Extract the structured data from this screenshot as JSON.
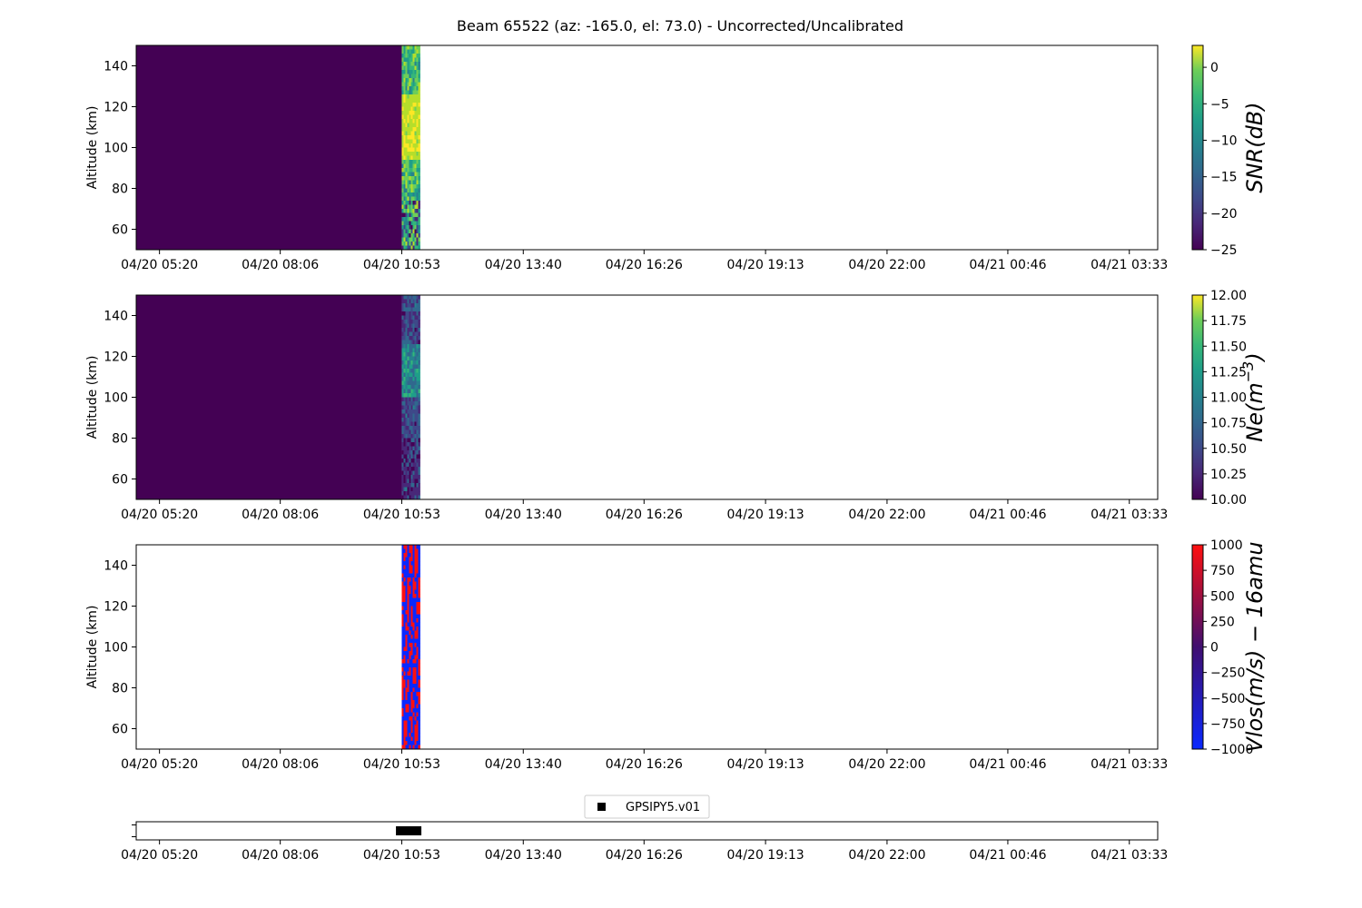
{
  "figure": {
    "title": "Beam 65522 (az: -165.0, el: 73.0) - Uncorrected/Uncalibrated"
  },
  "colors": {
    "viridis_low": "#440154",
    "vlos_blue": "#0a28ff",
    "vlos_red": "#ff1010",
    "axis": "#000000",
    "background": "#ffffff"
  },
  "chart_data": [
    {
      "type": "heatmap",
      "id": "snr",
      "ylabel": "Altitude (km)",
      "ylim": [
        50,
        150
      ],
      "yticks": [
        60,
        80,
        100,
        120,
        140
      ],
      "xticks": [
        "04/20 05:20",
        "04/20 08:06",
        "04/20 10:53",
        "04/20 13:40",
        "04/20 16:26",
        "04/20 19:13",
        "04/20 22:00",
        "04/21 00:46",
        "04/21 03:33"
      ],
      "xlim": [
        "04/20 04:48",
        "04/21 04:12"
      ],
      "colormap": "viridis",
      "colorbar": {
        "label": "SNR(dB)",
        "range": [
          -25,
          3
        ],
        "ticks": [
          "0",
          "−5",
          "−10",
          "−15",
          "−20",
          "−25"
        ]
      },
      "filled_span": [
        "04/20 04:48",
        "04/20 10:53"
      ],
      "data_span": [
        "04/20 10:53",
        "04/20 11:18"
      ],
      "data_peak_altitude_range": [
        95,
        125
      ]
    },
    {
      "type": "heatmap",
      "id": "ne",
      "ylabel": "Altitude (km)",
      "ylim": [
        50,
        150
      ],
      "yticks": [
        60,
        80,
        100,
        120,
        140
      ],
      "xticks": [
        "04/20 05:20",
        "04/20 08:06",
        "04/20 10:53",
        "04/20 13:40",
        "04/20 16:26",
        "04/20 19:13",
        "04/20 22:00",
        "04/21 00:46",
        "04/21 03:33"
      ],
      "xlim": [
        "04/20 04:48",
        "04/21 04:12"
      ],
      "colormap": "viridis",
      "colorbar": {
        "label": "Ne(m",
        "label_sup": "−3",
        "label_end": ")",
        "range": [
          10,
          12
        ],
        "ticks": [
          "12.00",
          "11.75",
          "11.50",
          "11.25",
          "11.00",
          "10.75",
          "10.50",
          "10.25",
          "10.00"
        ]
      },
      "filled_span": [
        "04/20 04:48",
        "04/20 10:53"
      ],
      "data_span": [
        "04/20 10:53",
        "04/20 11:18"
      ],
      "data_peak_altitude_range": [
        100,
        125
      ]
    },
    {
      "type": "heatmap",
      "id": "vlos",
      "ylabel": "Altitude (km)",
      "ylim": [
        50,
        150
      ],
      "yticks": [
        60,
        80,
        100,
        120,
        140
      ],
      "xticks": [
        "04/20 05:20",
        "04/20 08:06",
        "04/20 10:53",
        "04/20 13:40",
        "04/20 16:26",
        "04/20 19:13",
        "04/20 22:00",
        "04/21 00:46",
        "04/21 03:33"
      ],
      "xlim": [
        "04/20 04:48",
        "04/21 04:12"
      ],
      "colormap": "bwr",
      "colorbar": {
        "label": "Vlos(m/s) − 16amu",
        "range": [
          -1000,
          1000
        ],
        "ticks": [
          "1000",
          "750",
          "500",
          "250",
          "0",
          "−250",
          "−500",
          "−750",
          "−1000"
        ]
      },
      "data_span": [
        "04/20 10:53",
        "04/20 11:18"
      ]
    },
    {
      "type": "scatter",
      "id": "availability",
      "xticks": [
        "04/20 05:20",
        "04/20 08:06",
        "04/20 10:53",
        "04/20 13:40",
        "04/20 16:26",
        "04/20 19:13",
        "04/20 22:00",
        "04/21 00:46",
        "04/21 03:33"
      ],
      "xlim": [
        "04/20 04:48",
        "04/21 04:12"
      ],
      "series": [
        {
          "name": "GPSIPY5.v01",
          "marker": "square",
          "color": "#000000",
          "x_span": [
            "04/20 10:50",
            "04/20 11:18"
          ]
        }
      ],
      "legend": "top-center"
    }
  ]
}
